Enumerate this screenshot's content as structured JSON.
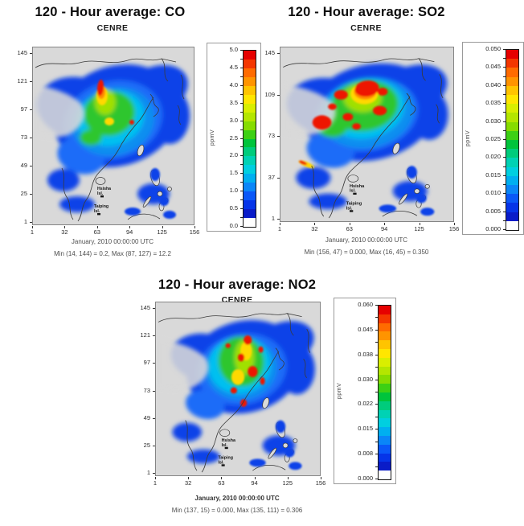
{
  "figure": {
    "background": "#ffffff",
    "land_color": "#d9d9d9",
    "status_colors": {
      "low": "#0b42e8",
      "mid": "#2ec62e",
      "high": "#ee1500"
    }
  },
  "panels": [
    {
      "id": "CO",
      "title": "120 - Hour average: CO",
      "subtitle": "CENRE",
      "y_ticks": [
        "145",
        "121",
        "97",
        "73",
        "49",
        "25",
        "1"
      ],
      "x_ticks": [
        "1",
        "32",
        "63",
        "94",
        "125",
        "156"
      ],
      "colorbar": {
        "unit": "ppmV",
        "ticks": [
          "5.0",
          "4.5",
          "4.0",
          "3.5",
          "3.0",
          "2.5",
          "2.0",
          "1.5",
          "1.0",
          "0.5",
          "0.0"
        ]
      },
      "caption_date": "January, 2010 00:00:00 UTC",
      "caption_stats": "Min (14, 144) = 0.2, Max (87, 127) = 12.2",
      "annotations": [
        {
          "line1": "Hsisha",
          "line2": "Isl."
        },
        {
          "line1": "Taiping",
          "line2": "Isl."
        }
      ]
    },
    {
      "id": "SO2",
      "title": "120 - Hour average: SO2",
      "subtitle": "CENRE",
      "y_ticks": [
        "145",
        "109",
        "73",
        "37",
        "1"
      ],
      "x_ticks": [
        "1",
        "32",
        "63",
        "94",
        "125",
        "156"
      ],
      "colorbar": {
        "unit": "ppmV",
        "ticks": [
          "0.050",
          "0.045",
          "0.040",
          "0.035",
          "0.030",
          "0.025",
          "0.020",
          "0.015",
          "0.010",
          "0.005",
          "0.000"
        ]
      },
      "caption_date": "January, 2010 00:00:00 UTC",
      "caption_stats": "Min (156, 47) = 0.000, Max (16, 45) = 0.350",
      "annotations": [
        {
          "line1": "Hsisha",
          "line2": "Isl."
        },
        {
          "line1": "Taiping",
          "line2": "Isl."
        }
      ]
    },
    {
      "id": "NO2",
      "title": "120 - Hour average: NO2",
      "subtitle": "CENRE",
      "y_ticks": [
        "145",
        "121",
        "97",
        "73",
        "49",
        "25",
        "1"
      ],
      "x_ticks": [
        "1",
        "32",
        "63",
        "94",
        "125",
        "156"
      ],
      "colorbar": {
        "unit": "ppmV",
        "ticks": [
          "0.060",
          "0.045",
          "0.038",
          "0.030",
          "0.022",
          "0.015",
          "0.008",
          "0.000"
        ]
      },
      "caption_date": "January, 2010 00:00:00 UTC",
      "caption_stats": "Min (137, 15) = 0.000, Max (135, 111) = 0.306",
      "annotations": [
        {
          "line1": "Hsisha",
          "line2": "Isl."
        },
        {
          "line1": "Taiping",
          "line2": "Isl."
        }
      ]
    }
  ],
  "chart_data": [
    {
      "type": "heatmap",
      "pollutant": "CO",
      "title": "120 - Hour average: CO",
      "subtitle": "CENRE",
      "x_ticks": [
        1,
        32,
        63,
        94,
        125,
        156
      ],
      "y_ticks": [
        145,
        121,
        97,
        73,
        49,
        25,
        1
      ],
      "colorbar": {
        "unit": "ppmV",
        "min": 0.0,
        "max": 5.0,
        "step": 0.5
      },
      "timestamp": "January, 2010 00:00:00 UTC",
      "min": {
        "col": 14,
        "row": 144,
        "value": 0.2
      },
      "max": {
        "col": 87,
        "row": 127,
        "value": 12.2
      },
      "legend_position": "right",
      "grid": false
    },
    {
      "type": "heatmap",
      "pollutant": "SO2",
      "title": "120 - Hour average: SO2",
      "subtitle": "CENRE",
      "x_ticks": [
        1,
        32,
        63,
        94,
        125,
        156
      ],
      "y_ticks": [
        145,
        109,
        73,
        37,
        1
      ],
      "colorbar": {
        "unit": "ppmV",
        "min": 0.0,
        "max": 0.05,
        "step": 0.005
      },
      "timestamp": "January, 2010 00:00:00 UTC",
      "min": {
        "col": 156,
        "row": 47,
        "value": 0.0
      },
      "max": {
        "col": 16,
        "row": 45,
        "value": 0.35
      },
      "legend_position": "right",
      "grid": false
    },
    {
      "type": "heatmap",
      "pollutant": "NO2",
      "title": "120 - Hour average: NO2",
      "subtitle": "CENRE",
      "x_ticks": [
        1,
        32,
        63,
        94,
        125,
        156
      ],
      "y_ticks": [
        145,
        121,
        97,
        73,
        49,
        25,
        1
      ],
      "colorbar": {
        "unit": "ppmV",
        "min": 0.0,
        "max": 0.06,
        "tick_labels": [
          0.06,
          0.045,
          0.038,
          0.03,
          0.022,
          0.015,
          0.008,
          0.0
        ]
      },
      "timestamp": "January, 2010 00:00:00 UTC",
      "min": {
        "col": 137,
        "row": 15,
        "value": 0.0
      },
      "max": {
        "col": 135,
        "row": 111,
        "value": 0.306
      },
      "legend_position": "right",
      "grid": false
    }
  ]
}
